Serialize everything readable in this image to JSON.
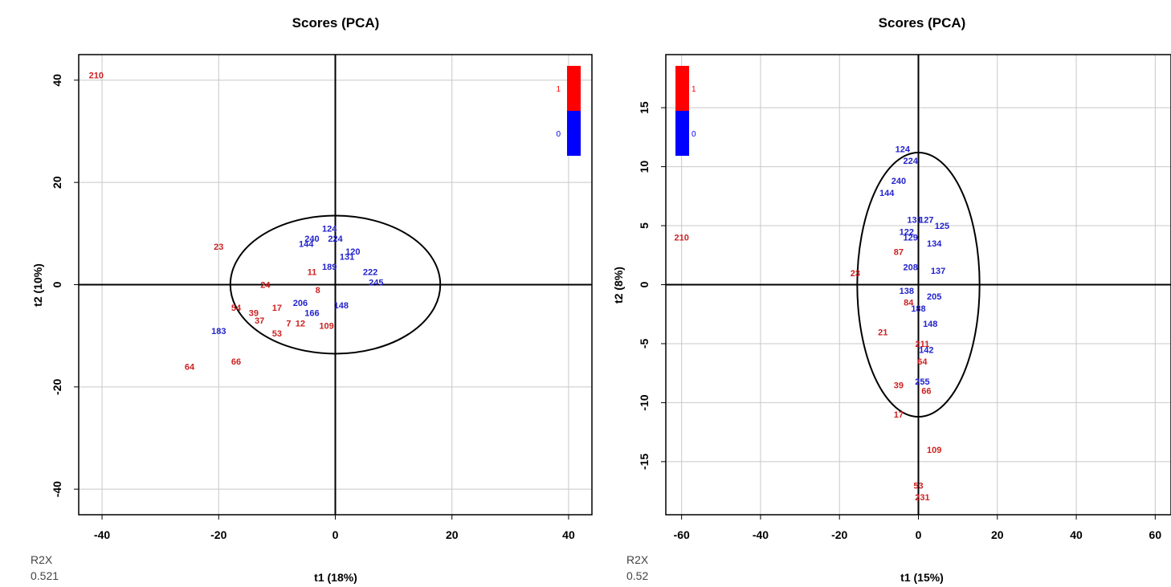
{
  "colors": {
    "class_1": "#cc2222",
    "class_0": "#2222cc",
    "axis": "#000000",
    "grid": "#c8c8c8"
  },
  "chart_data": [
    {
      "type": "scatter",
      "title": "Scores (PCA)",
      "xlabel": "t1 (18%)",
      "ylabel": "t2 (10%)",
      "r2x_label": "R2X",
      "r2x_value": "0.521",
      "xlim": [
        -44,
        44
      ],
      "ylim": [
        -45,
        45
      ],
      "xticks": [
        "-40",
        "-20",
        "0",
        "20",
        "40"
      ],
      "yticks": [
        "40",
        "20",
        "0",
        "-20",
        "-40"
      ],
      "xtick_values": [
        -40,
        -20,
        0,
        20,
        40
      ],
      "ytick_values": [
        40,
        20,
        0,
        -20,
        -40
      ],
      "grid": true,
      "legend": {
        "placement": "top-right",
        "entries": [
          "1",
          "0"
        ],
        "colors": [
          "#ff0000",
          "#0000ff"
        ]
      },
      "ellipse": {
        "rx": 18,
        "ry": 13.5
      },
      "points": [
        {
          "label": "210",
          "x": -41,
          "y": 41,
          "class": "1"
        },
        {
          "label": "23",
          "x": -20,
          "y": 7.5,
          "class": "1"
        },
        {
          "label": "24",
          "x": -12,
          "y": 0,
          "class": "1"
        },
        {
          "label": "11",
          "x": -4,
          "y": 2.5,
          "class": "1"
        },
        {
          "label": "17",
          "x": -10,
          "y": -4.5,
          "class": "1"
        },
        {
          "label": "54",
          "x": -17,
          "y": -4.5,
          "class": "1"
        },
        {
          "label": "39",
          "x": -14,
          "y": -5.5,
          "class": "1"
        },
        {
          "label": "37",
          "x": -13,
          "y": -7,
          "class": "1"
        },
        {
          "label": "53",
          "x": -10,
          "y": -9.5,
          "class": "1"
        },
        {
          "label": "7",
          "x": -8,
          "y": -7.5,
          "class": "1"
        },
        {
          "label": "12",
          "x": -6,
          "y": -7.5,
          "class": "1"
        },
        {
          "label": "109",
          "x": -1.5,
          "y": -8,
          "class": "1"
        },
        {
          "label": "66",
          "x": -17,
          "y": -15,
          "class": "1"
        },
        {
          "label": "64",
          "x": -25,
          "y": -16,
          "class": "1"
        },
        {
          "label": "8",
          "x": -3,
          "y": -1,
          "class": "1"
        },
        {
          "label": "183",
          "x": -20,
          "y": -9,
          "class": "0"
        },
        {
          "label": "124",
          "x": -1,
          "y": 11,
          "class": "0"
        },
        {
          "label": "240",
          "x": -4,
          "y": 9,
          "class": "0"
        },
        {
          "label": "224",
          "x": 0,
          "y": 9,
          "class": "0"
        },
        {
          "label": "144",
          "x": -5,
          "y": 8,
          "class": "0"
        },
        {
          "label": "120",
          "x": 3,
          "y": 6.5,
          "class": "0"
        },
        {
          "label": "131",
          "x": 2,
          "y": 5.5,
          "class": "0"
        },
        {
          "label": "189",
          "x": -1,
          "y": 3.5,
          "class": "0"
        },
        {
          "label": "206",
          "x": -6,
          "y": -3.5,
          "class": "0"
        },
        {
          "label": "166",
          "x": -4,
          "y": -5.5,
          "class": "0"
        },
        {
          "label": "148",
          "x": 1,
          "y": -4,
          "class": "0"
        },
        {
          "label": "222",
          "x": 6,
          "y": 2.5,
          "class": "0"
        },
        {
          "label": "245",
          "x": 7,
          "y": 0.5,
          "class": "0"
        }
      ]
    },
    {
      "type": "scatter",
      "title": "Scores (PCA)",
      "xlabel": "t1 (15%)",
      "ylabel": "t2 (8%)",
      "r2x_label": "R2X",
      "r2x_value": "0.52",
      "xlim": [
        -64,
        64
      ],
      "ylim": [
        -19.5,
        19.5
      ],
      "xticks": [
        "-60",
        "-40",
        "-20",
        "0",
        "20",
        "40",
        "60"
      ],
      "yticks": [
        "15",
        "10",
        "5",
        "0",
        "-5",
        "-10",
        "-15"
      ],
      "xtick_values": [
        -60,
        -40,
        -20,
        0,
        20,
        40,
        60
      ],
      "ytick_values": [
        15,
        10,
        5,
        0,
        -5,
        -10,
        -15
      ],
      "grid": true,
      "legend": {
        "placement": "top-left",
        "entries": [
          "1",
          "0"
        ],
        "colors": [
          "#ff0000",
          "#0000ff"
        ]
      },
      "ellipse": {
        "rx": 15.5,
        "ry": 11.2
      },
      "points": [
        {
          "label": "210",
          "x": -60,
          "y": 4,
          "class": "1"
        },
        {
          "label": "23",
          "x": -16,
          "y": 1,
          "class": "1"
        },
        {
          "label": "21",
          "x": -9,
          "y": -4,
          "class": "1"
        },
        {
          "label": "39",
          "x": -5,
          "y": -8.5,
          "class": "1"
        },
        {
          "label": "17",
          "x": -5,
          "y": -11,
          "class": "1"
        },
        {
          "label": "109",
          "x": 4,
          "y": -14,
          "class": "1"
        },
        {
          "label": "53",
          "x": 0,
          "y": -17,
          "class": "1"
        },
        {
          "label": "231",
          "x": 1,
          "y": -18,
          "class": "1"
        },
        {
          "label": "66",
          "x": 2,
          "y": -9,
          "class": "1"
        },
        {
          "label": "64",
          "x": 1,
          "y": -6.5,
          "class": "1"
        },
        {
          "label": "211",
          "x": 1,
          "y": -5,
          "class": "1"
        },
        {
          "label": "87",
          "x": -5,
          "y": 2.8,
          "class": "1"
        },
        {
          "label": "84",
          "x": -2.5,
          "y": -1.5,
          "class": "1"
        },
        {
          "label": "124",
          "x": -4,
          "y": 11.5,
          "class": "0"
        },
        {
          "label": "224",
          "x": -2,
          "y": 10.5,
          "class": "0"
        },
        {
          "label": "240",
          "x": -5,
          "y": 8.8,
          "class": "0"
        },
        {
          "label": "144",
          "x": -8,
          "y": 7.8,
          "class": "0"
        },
        {
          "label": "131",
          "x": -1,
          "y": 5.5,
          "class": "0"
        },
        {
          "label": "127",
          "x": 2,
          "y": 5.5,
          "class": "0"
        },
        {
          "label": "125",
          "x": 6,
          "y": 5,
          "class": "0"
        },
        {
          "label": "122",
          "x": -3,
          "y": 4.5,
          "class": "0"
        },
        {
          "label": "129",
          "x": -2,
          "y": 4,
          "class": "0"
        },
        {
          "label": "134",
          "x": 4,
          "y": 3.5,
          "class": "0"
        },
        {
          "label": "208",
          "x": -2,
          "y": 1.5,
          "class": "0"
        },
        {
          "label": "137",
          "x": 5,
          "y": 1.2,
          "class": "0"
        },
        {
          "label": "138",
          "x": -3,
          "y": -0.5,
          "class": "0"
        },
        {
          "label": "148",
          "x": 3,
          "y": -3.3,
          "class": "0"
        },
        {
          "label": "255",
          "x": 1,
          "y": -8.2,
          "class": "0"
        },
        {
          "label": "142",
          "x": 2,
          "y": -5.5,
          "class": "0"
        },
        {
          "label": "188",
          "x": 0,
          "y": -2,
          "class": "0"
        },
        {
          "label": "205",
          "x": 4,
          "y": -1,
          "class": "0"
        }
      ]
    }
  ]
}
